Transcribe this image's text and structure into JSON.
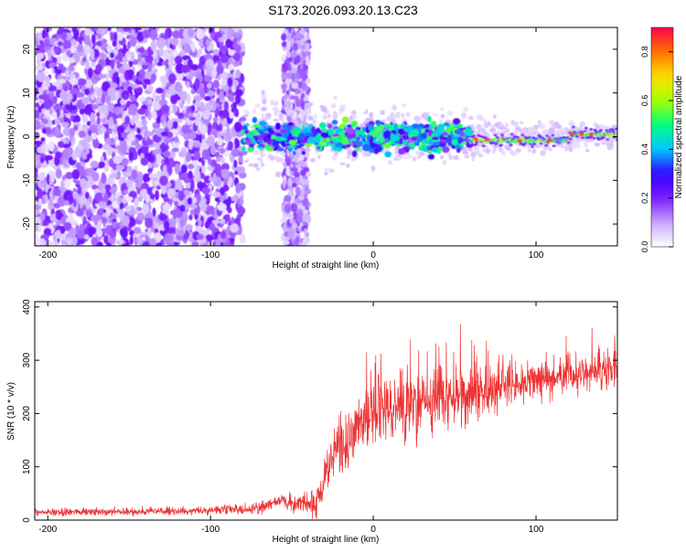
{
  "title": "S173.2026.093.20.13.C23",
  "chart_data": [
    {
      "type": "heatmap",
      "xlabel": "Height of straight line (km)",
      "ylabel": "Frequency (Hz)",
      "xlim": [
        -208,
        150
      ],
      "ylim": [
        -25,
        25
      ],
      "xticks": [
        -200,
        -100,
        0,
        100
      ],
      "yticks": [
        -20,
        -10,
        0,
        10,
        20
      ],
      "colorbar": {
        "label": "Normalized spectral amplitude",
        "range": [
          0.0,
          0.9
        ],
        "ticks": [
          "0.0",
          "0.2",
          "0.4",
          "0.6",
          "0.8"
        ],
        "tick_values": [
          0.0,
          0.2,
          0.4,
          0.6,
          0.8
        ],
        "colors": [
          "#ffffff",
          "#c8a6ff",
          "#7a18ff",
          "#3300ff",
          "#00c8ff",
          "#00ff80",
          "#a8ff00",
          "#ffe000",
          "#ff7000",
          "#ff0050"
        ]
      },
      "features": [
        {
          "label": "noise region",
          "x": [
            -208,
            -80
          ],
          "y": [
            -25,
            25
          ],
          "level": 0.12
        },
        {
          "label": "vertical streak",
          "x": [
            -55,
            -40
          ],
          "y": [
            -25,
            25
          ],
          "level": 0.1
        },
        {
          "label": "emerging signal",
          "x": [
            -80,
            60
          ],
          "y": [
            -6,
            6
          ],
          "level": 0.35
        },
        {
          "label": "steady carrier",
          "x": [
            60,
            150
          ],
          "y": [
            -1.5,
            1.5
          ],
          "level": 0.55
        }
      ]
    },
    {
      "type": "line",
      "xlabel": "Height of straight line (km)",
      "ylabel": "SNR (10 * v/v)",
      "xlim": [
        -208,
        150
      ],
      "ylim": [
        0,
        410
      ],
      "xticks": [
        -200,
        -100,
        0,
        100
      ],
      "yticks": [
        0,
        100,
        200,
        300,
        400
      ],
      "color": "#ee3333",
      "trend": [
        {
          "x": -208,
          "y": 15
        },
        {
          "x": -150,
          "y": 16
        },
        {
          "x": -100,
          "y": 18
        },
        {
          "x": -70,
          "y": 22
        },
        {
          "x": -55,
          "y": 40
        },
        {
          "x": -48,
          "y": 30
        },
        {
          "x": -35,
          "y": 30
        },
        {
          "x": -25,
          "y": 120
        },
        {
          "x": -10,
          "y": 170
        },
        {
          "x": 0,
          "y": 200
        },
        {
          "x": 25,
          "y": 220
        },
        {
          "x": 50,
          "y": 230
        },
        {
          "x": 75,
          "y": 245
        },
        {
          "x": 100,
          "y": 262
        },
        {
          "x": 125,
          "y": 275
        },
        {
          "x": 150,
          "y": 280
        }
      ],
      "spread": [
        {
          "x": -208,
          "y": 12
        },
        {
          "x": -100,
          "y": 12
        },
        {
          "x": -50,
          "y": 25
        },
        {
          "x": -30,
          "y": 60
        },
        {
          "x": -15,
          "y": 100
        },
        {
          "x": 0,
          "y": 110
        },
        {
          "x": 50,
          "y": 90
        },
        {
          "x": 100,
          "y": 60
        },
        {
          "x": 150,
          "y": 55
        }
      ]
    }
  ]
}
